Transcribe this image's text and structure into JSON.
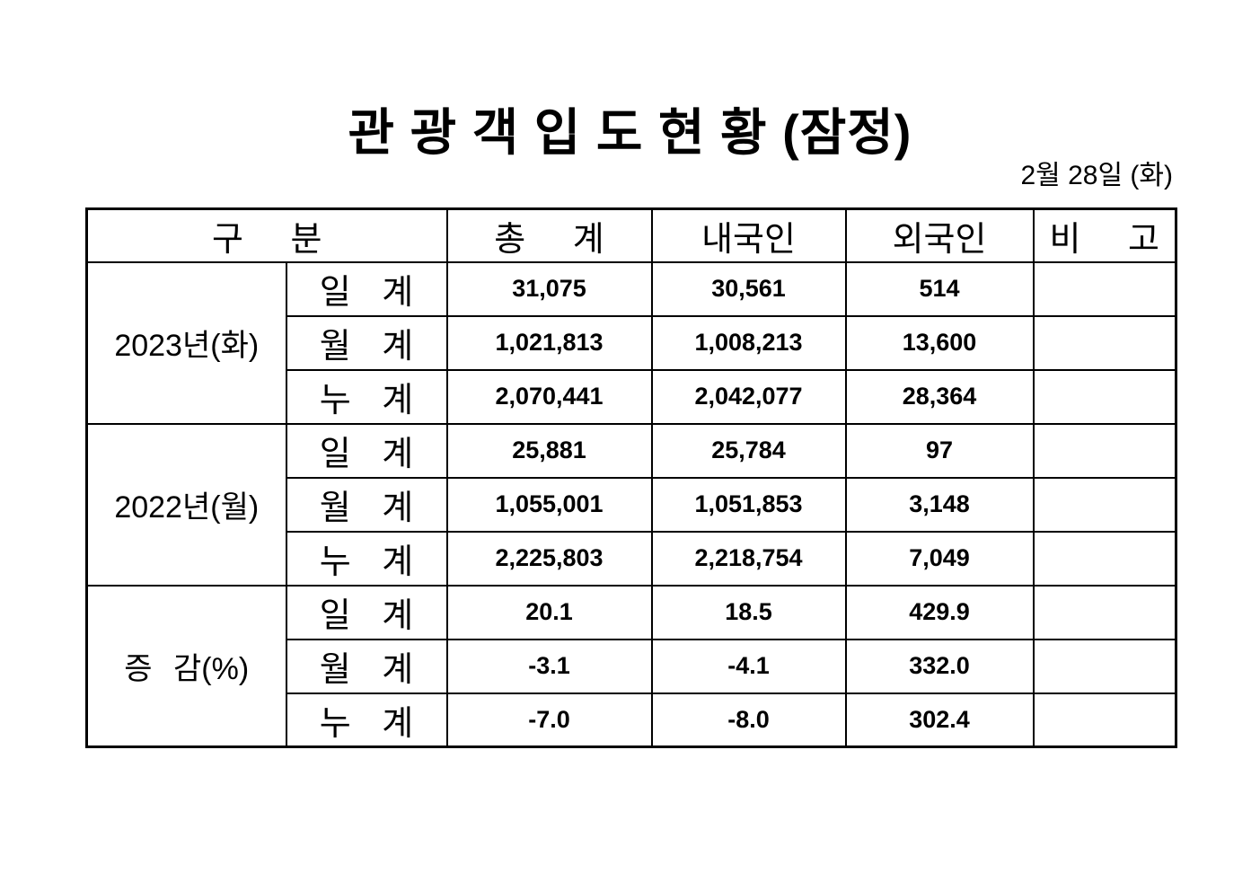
{
  "page": {
    "title": "관 광 객 입 도 현 황 (잠정)",
    "date": "2월 28일 (화)"
  },
  "table": {
    "headers": {
      "category": "구 분",
      "total": "총 계",
      "domestic": "내국인",
      "foreign": "외국인",
      "note": "비 고"
    },
    "groups": [
      {
        "label": "2023년(화)",
        "rows": [
          {
            "label": "일 계",
            "total": "31,075",
            "domestic": "30,561",
            "foreign": "514",
            "note": ""
          },
          {
            "label": "월 계",
            "total": "1,021,813",
            "domestic": "1,008,213",
            "foreign": "13,600",
            "note": ""
          },
          {
            "label": "누 계",
            "total": "2,070,441",
            "domestic": "2,042,077",
            "foreign": "28,364",
            "note": ""
          }
        ]
      },
      {
        "label": "2022년(월)",
        "rows": [
          {
            "label": "일 계",
            "total": "25,881",
            "domestic": "25,784",
            "foreign": "97",
            "note": ""
          },
          {
            "label": "월 계",
            "total": "1,055,001",
            "domestic": "1,051,853",
            "foreign": "3,148",
            "note": ""
          },
          {
            "label": "누 계",
            "total": "2,225,803",
            "domestic": "2,218,754",
            "foreign": "7,049",
            "note": ""
          }
        ]
      },
      {
        "label": "증 감(%)",
        "rows": [
          {
            "label": "일 계",
            "total": "20.1",
            "domestic": "18.5",
            "foreign": "429.9",
            "note": ""
          },
          {
            "label": "월 계",
            "total": "-3.1",
            "domestic": "-4.1",
            "foreign": "332.0",
            "note": ""
          },
          {
            "label": "누 계",
            "total": "-7.0",
            "domestic": "-8.0",
            "foreign": "302.4",
            "note": ""
          }
        ]
      }
    ]
  }
}
